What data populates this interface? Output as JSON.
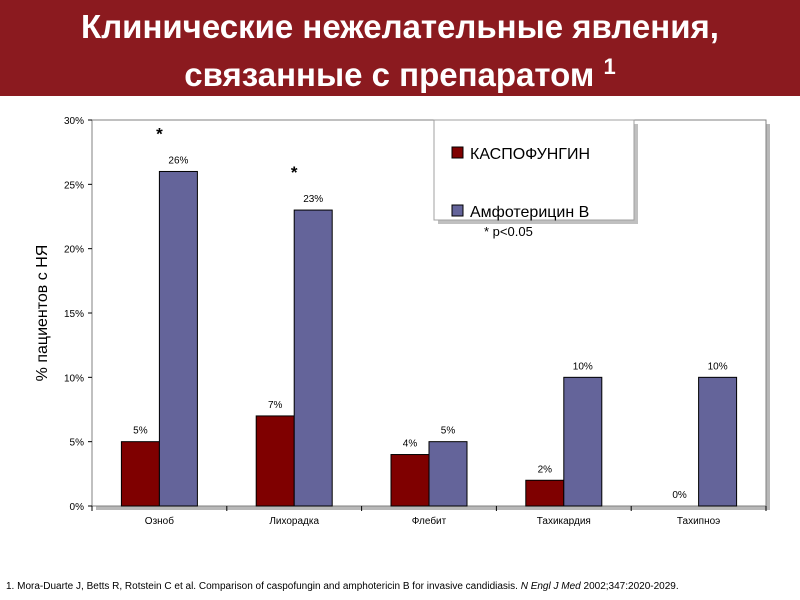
{
  "header": {
    "title_line1": "Клинические нежелательные явления,",
    "title_line2": "связанные с препаратом",
    "title_superscript": "1"
  },
  "colors": {
    "header_bg": "#8b1a1f",
    "caspofungin": "#7f0000",
    "amphotericin": "#64649a"
  },
  "chart_data": {
    "type": "bar",
    "categories": [
      "Озноб",
      "Лихорадка",
      "Флебит",
      "Тахикардия",
      "Тахипноэ"
    ],
    "series": [
      {
        "name": "КАСПОФУНГИН",
        "values": [
          5,
          7,
          4,
          2,
          0
        ],
        "labels": [
          "5%",
          "7%",
          "4%",
          "2%",
          "0%"
        ],
        "color": "#7f0000"
      },
      {
        "name": "Амфотерицин В",
        "values": [
          26,
          23,
          5,
          10,
          10
        ],
        "labels": [
          "26%",
          "23%",
          "5%",
          "10%",
          "10%"
        ],
        "color": "#64649a"
      }
    ],
    "ylabel": "% пациентов с НЯ",
    "ylim": [
      0,
      30
    ],
    "yticks": [
      "0%",
      "5%",
      "10%",
      "15%",
      "20%",
      "25%",
      "30%"
    ],
    "significance_markers": [
      {
        "category": "Озноб",
        "text": "*"
      },
      {
        "category": "Лихорадка",
        "text": "*"
      }
    ],
    "annotation": "* p<0.05",
    "legend_position": "top-right",
    "grid": false
  },
  "footnote": {
    "main": "1. Mora-Duarte J, Betts R, Rotstein C et al. Comparison of caspofungin and amphotericin B for invasive candidiasis.",
    "journal": "N Engl J Med",
    "tail": "2002;347:2020-2029."
  }
}
